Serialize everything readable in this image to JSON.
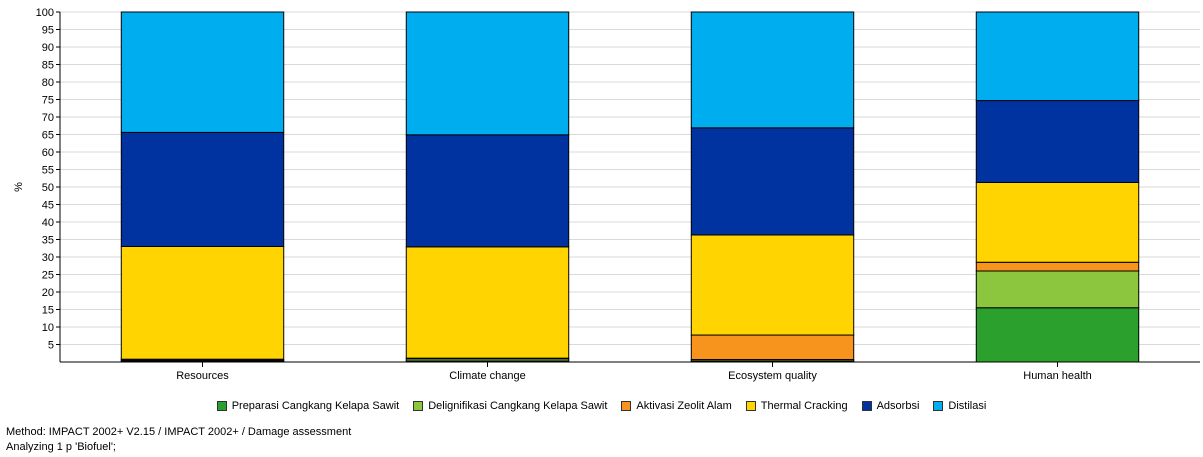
{
  "chart_data": {
    "type": "bar",
    "stacked": true,
    "ylabel": "%",
    "xlabel": "",
    "ylim": [
      0,
      100
    ],
    "yticks": [
      5,
      10,
      15,
      20,
      25,
      30,
      35,
      40,
      45,
      50,
      55,
      60,
      65,
      70,
      75,
      80,
      85,
      90,
      95,
      100
    ],
    "grid": true,
    "legend_position": "bottom",
    "categories": [
      "Resources",
      "Climate change",
      "Ecosystem quality",
      "Human health"
    ],
    "series": [
      {
        "name": "Preparasi Cangkang Kelapa Sawit",
        "color": "#2ca02c",
        "values": [
          0.2,
          0.3,
          0.3,
          15.5
        ]
      },
      {
        "name": "Delignifikasi Cangkang Kelapa Sawit",
        "color": "#8cc63f",
        "values": [
          0.3,
          0.6,
          0.4,
          10.5
        ]
      },
      {
        "name": "Aktivasi Zeolit Alam",
        "color": "#f7941d",
        "values": [
          0.3,
          0.2,
          7.0,
          2.5
        ]
      },
      {
        "name": "Thermal Cracking",
        "color": "#ffd400",
        "values": [
          32.2,
          31.8,
          28.6,
          22.8
        ]
      },
      {
        "name": "Adsorbsi",
        "color": "#0033a0",
        "values": [
          32.6,
          32.0,
          30.6,
          23.4
        ]
      },
      {
        "name": "Distilasi",
        "color": "#00aeef",
        "values": [
          34.4,
          35.1,
          33.1,
          25.3
        ]
      }
    ]
  },
  "footer": {
    "method": "Method: IMPACT 2002+ V2.15 / IMPACT 2002+ / Damage assessment",
    "analyzing": "Analyzing 1 p 'Biofuel';"
  }
}
